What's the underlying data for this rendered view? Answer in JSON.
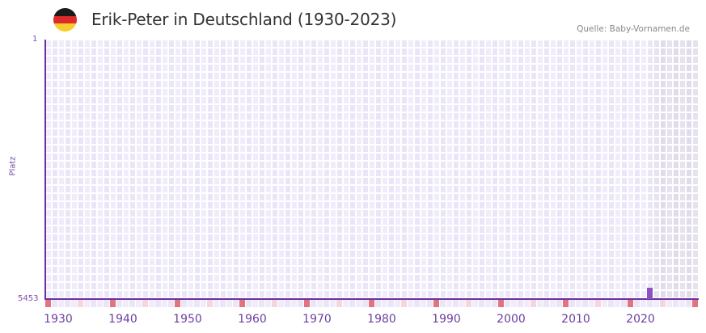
{
  "header": {
    "title": "Erik-Peter in Deutschland (1930-2023)",
    "source": "Quelle: Baby-Vornamen.de",
    "flag_colors": [
      "#1a1a1a",
      "#dd2a2a",
      "#f6cf2e"
    ]
  },
  "axis": {
    "y_top_label": "1",
    "y_bottom_label": "5453",
    "y_title": "Platz"
  },
  "colors": {
    "axis": "#6b2fa0",
    "bar": "#8c4fc4",
    "cell_a": "#f0ecfb",
    "cell_b": "#ebe5f8",
    "cell_shaded_a": "#e6e2ee",
    "cell_shaded_b": "#e1dbec",
    "marker_decade": "#e07580",
    "marker_half": "#f5d6dd"
  },
  "chart_data": {
    "type": "bar",
    "title": "Erik-Peter in Deutschland (1930-2023)",
    "xlabel": "",
    "ylabel": "Platz",
    "ylim": [
      5453,
      1
    ],
    "x_ticks": [
      "1930",
      "1940",
      "1950",
      "1960",
      "1970",
      "1980",
      "1990",
      "2000",
      "2010",
      "2020"
    ],
    "series": [
      {
        "name": "Erik-Peter",
        "points": [
          {
            "year": 2021,
            "rank": 5453
          }
        ]
      }
    ],
    "grid": true,
    "legend": "none"
  }
}
